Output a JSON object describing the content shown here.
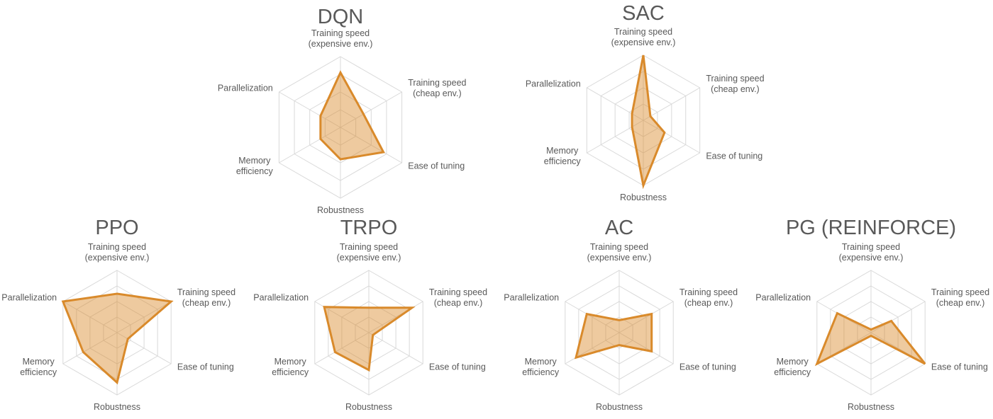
{
  "chart_data": [
    {
      "type": "radar",
      "title": "DQN",
      "categories": [
        "Training speed\n(expensive env.)",
        "Training speed\n(cheap env.)",
        "Ease of tuning",
        "Robustness",
        "Memory\nefficiency",
        "Parallelization"
      ],
      "values": [
        3.1,
        1.5,
        2.8,
        1.8,
        1.3,
        1.3
      ],
      "color": "#d98a2b",
      "rlim": [
        0,
        4
      ],
      "rticks": [
        1,
        2,
        3,
        4
      ]
    },
    {
      "type": "radar",
      "title": "SAC",
      "categories": [
        "Training speed\n(expensive env.)",
        "Training speed\n(cheap env.)",
        "Ease of tuning",
        "Robustness",
        "Memory\nefficiency",
        "Parallelization"
      ],
      "values": [
        4,
        0.5,
        1.5,
        4,
        0.8,
        0.8
      ],
      "color": "#d98a2b",
      "rlim": [
        0,
        4
      ],
      "rticks": [
        1,
        2,
        3,
        4
      ]
    },
    {
      "type": "radar",
      "title": "PPO",
      "categories": [
        "Training speed\n(expensive env.)",
        "Training speed\n(cheap env.)",
        "Ease of tuning",
        "Robustness",
        "Memory\nefficiency",
        "Parallelization"
      ],
      "values": [
        2.5,
        4,
        0.8,
        3.2,
        2.5,
        4
      ],
      "color": "#d98a2b",
      "rlim": [
        0,
        4
      ],
      "rticks": [
        1,
        2,
        3,
        4
      ]
    },
    {
      "type": "radar",
      "title": "TRPO",
      "categories": [
        "Training speed\n(expensive env.)",
        "Training speed\n(cheap env.)",
        "Ease of tuning",
        "Robustness",
        "Memory\nefficiency",
        "Parallelization"
      ],
      "values": [
        1.6,
        3.2,
        0.3,
        2.4,
        2.5,
        3.3
      ],
      "color": "#d98a2b",
      "rlim": [
        0,
        4
      ],
      "rticks": [
        1,
        2,
        3,
        4
      ]
    },
    {
      "type": "radar",
      "title": "AC",
      "categories": [
        "Training speed\n(expensive env.)",
        "Training speed\n(cheap env.)",
        "Ease of tuning",
        "Robustness",
        "Memory\nefficiency",
        "Parallelization"
      ],
      "values": [
        0.8,
        2.4,
        2.4,
        0.8,
        3.2,
        2.4
      ],
      "color": "#d98a2b",
      "rlim": [
        0,
        4
      ],
      "rticks": [
        1,
        2,
        3,
        4
      ]
    },
    {
      "type": "radar",
      "title": "PG (REINFORCE)",
      "categories": [
        "Training speed\n(expensive env.)",
        "Training speed\n(cheap env.)",
        "Ease of tuning",
        "Robustness",
        "Memory\nefficiency",
        "Parallelization"
      ],
      "values": [
        0.2,
        1.5,
        4,
        0.2,
        4,
        2.5
      ],
      "color": "#d98a2b",
      "rlim": [
        0,
        4
      ],
      "rticks": [
        1,
        2,
        3,
        4
      ]
    }
  ]
}
